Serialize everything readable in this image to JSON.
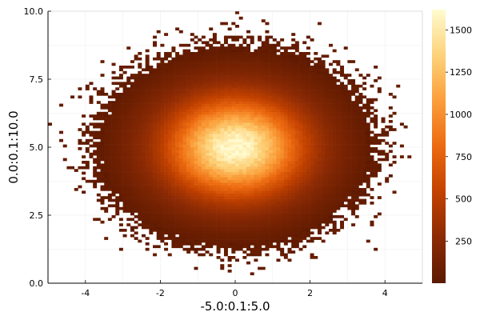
{
  "chart_data": {
    "type": "heatmap",
    "title": "",
    "xlabel": "-5.0:0.1:5.0",
    "ylabel": "0.0:0.1:10.0",
    "x_range": [
      -5.0,
      5.0
    ],
    "y_range": [
      0.0,
      10.0
    ],
    "bin_width": 0.1,
    "xlim": [
      -5.0,
      5.0
    ],
    "ylim": [
      0.0,
      10.0
    ],
    "x_ticks": [
      -4,
      -2,
      0,
      2,
      4
    ],
    "x_tick_labels": [
      "-4",
      "-2",
      "0",
      "2",
      "4"
    ],
    "y_ticks": [
      0.0,
      2.5,
      5.0,
      7.5,
      10.0
    ],
    "y_tick_labels": [
      "0.0",
      "2.5",
      "5.0",
      "7.5",
      "10.0"
    ],
    "grid": true,
    "density_center": [
      0.0,
      5.0
    ],
    "density_spread": [
      1.0,
      1.0
    ],
    "colorbar": {
      "min": 1,
      "max": 1620,
      "ticks": [
        250,
        500,
        750,
        1000,
        1250,
        1500
      ],
      "tick_labels": [
        "250",
        "500",
        "750",
        "1000",
        "1250",
        "1500"
      ],
      "colormap": [
        "#5c1900",
        "#8c2a04",
        "#c34200",
        "#ec6a10",
        "#fb9e3a",
        "#fdd27a",
        "#fffbd0"
      ]
    }
  }
}
